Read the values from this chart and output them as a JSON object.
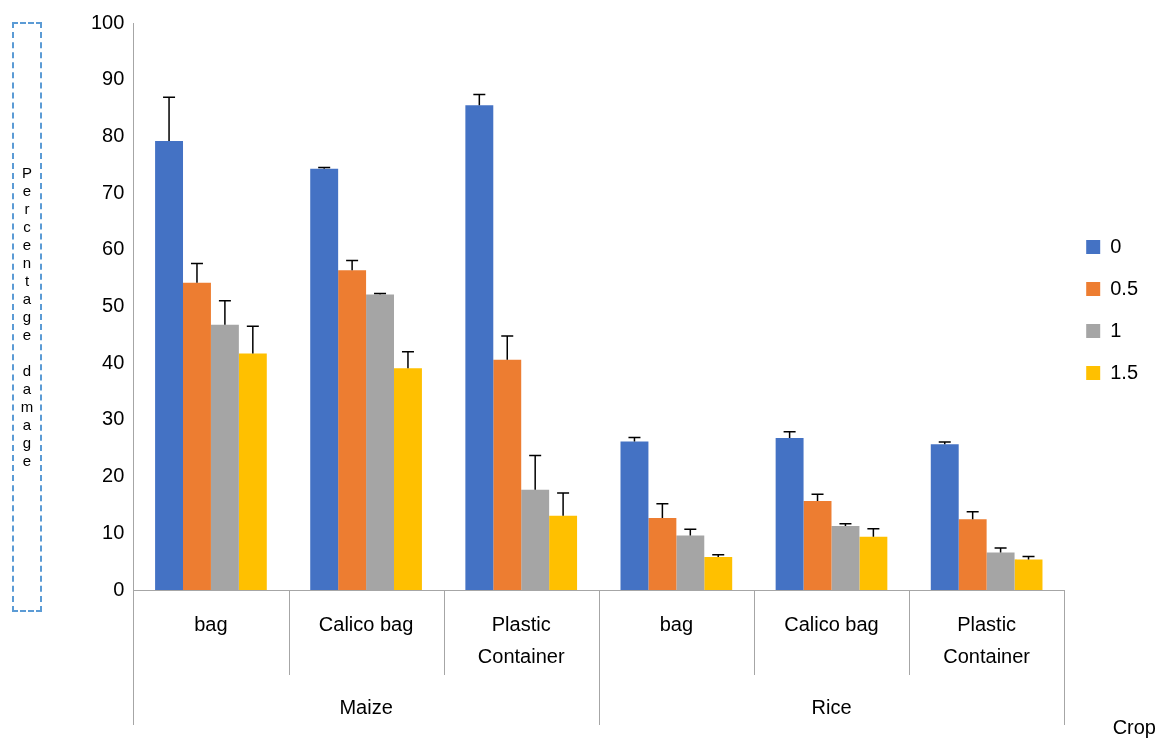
{
  "chart_data": {
    "type": "bar",
    "ylabel": "Percentage damage",
    "xlabel": "Crop",
    "categories": [
      "bag",
      "Calico bag",
      "Plastic Container",
      "bag",
      "Calico bag",
      "Plastic Container"
    ],
    "annotations": [
      "Maize",
      "Rice"
    ],
    "series": [
      {
        "name": "0",
        "color": "#4472c4",
        "values": [
          79.2,
          74.3,
          85.5,
          26.2,
          26.8,
          25.7
        ],
        "errors": [
          [
            79.2,
            86.9
          ],
          [
            74.3,
            74.5
          ],
          [
            85.5,
            87.4
          ],
          [
            26.2,
            26.9
          ],
          [
            26.8,
            27.9
          ],
          [
            25.7,
            26.1
          ]
        ]
      },
      {
        "name": "0.5",
        "color": "#ed7d31",
        "values": [
          54.2,
          56.4,
          40.6,
          12.7,
          15.7,
          12.5
        ],
        "errors": [
          [
            54.2,
            57.6
          ],
          [
            56.4,
            58.1
          ],
          [
            40.6,
            44.8
          ],
          [
            12.7,
            15.2
          ],
          [
            15.7,
            16.9
          ],
          [
            12.5,
            13.8
          ]
        ]
      },
      {
        "name": "1",
        "color": "#a5a5a5",
        "values": [
          46.8,
          52.1,
          17.7,
          9.6,
          11.3,
          6.6
        ],
        "errors": [
          [
            46.8,
            51
          ],
          [
            52.1,
            52.3
          ],
          [
            17.7,
            23.7
          ],
          [
            9.6,
            10.7
          ],
          [
            11.3,
            11.7
          ],
          [
            6.6,
            7.4
          ]
        ]
      },
      {
        "name": "1.5",
        "color": "#ffc000",
        "values": [
          41.7,
          39.1,
          13.1,
          5.8,
          9.4,
          5.4
        ],
        "errors": [
          [
            41.7,
            46.5
          ],
          [
            39.1,
            42
          ],
          [
            13.1,
            17.1
          ],
          [
            5.8,
            6.2
          ],
          [
            9.4,
            10.8
          ],
          [
            5.4,
            5.9
          ]
        ]
      }
    ],
    "ylim": [
      0,
      100
    ],
    "yticks": [
      0,
      10,
      20,
      30,
      40,
      50,
      60,
      70,
      80,
      90,
      100
    ],
    "grid": false,
    "legend": "right"
  }
}
